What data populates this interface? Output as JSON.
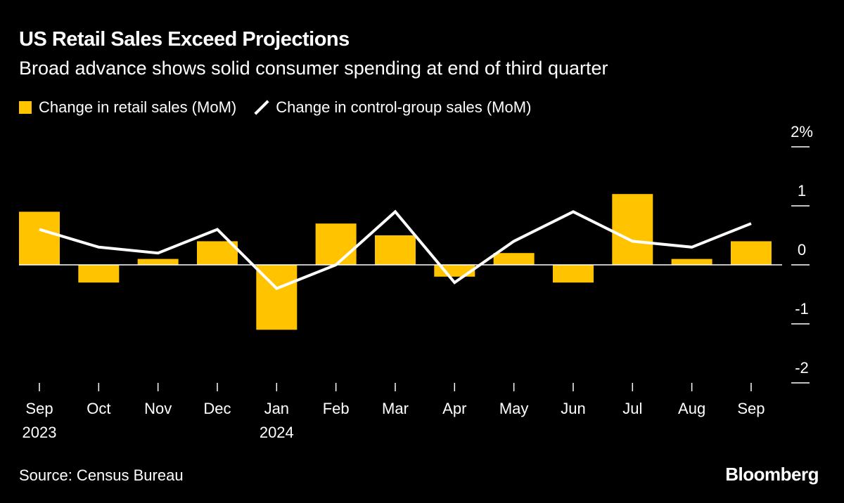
{
  "title": "US Retail Sales Exceed Projections",
  "subtitle": "Broad advance shows solid consumer spending at end of third quarter",
  "source": "Source: Census Bureau",
  "logo": "Bloomberg",
  "colors": {
    "bar": "#ffc300",
    "line": "#ffffff",
    "background": "#000000"
  },
  "chart_data": {
    "type": "bar+line",
    "categories": [
      "Sep",
      "Oct",
      "Nov",
      "Dec",
      "Jan",
      "Feb",
      "Mar",
      "Apr",
      "May",
      "Jun",
      "Jul",
      "Aug",
      "Sep"
    ],
    "year_labels": {
      "0": "2023",
      "4": "2024"
    },
    "series": [
      {
        "name": "Change in retail sales (MoM)",
        "type": "bar",
        "values": [
          0.9,
          -0.3,
          0.1,
          0.4,
          -1.1,
          0.7,
          0.5,
          -0.2,
          0.2,
          -0.3,
          1.2,
          0.1,
          0.4
        ]
      },
      {
        "name": "Change in control-group sales (MoM)",
        "type": "line",
        "values": [
          0.6,
          0.3,
          0.2,
          0.6,
          -0.4,
          0.0,
          0.9,
          -0.3,
          0.4,
          0.9,
          0.4,
          0.3,
          0.7
        ]
      }
    ],
    "y_ticks": [
      {
        "value": 2,
        "label": "2%"
      },
      {
        "value": 1,
        "label": "1"
      },
      {
        "value": 0,
        "label": "0"
      },
      {
        "value": -1,
        "label": "-1"
      },
      {
        "value": -2,
        "label": "-2"
      }
    ],
    "ylim": [
      -2,
      2
    ],
    "y_axis_position": "right",
    "grid": false,
    "legend_position": "top-left"
  }
}
